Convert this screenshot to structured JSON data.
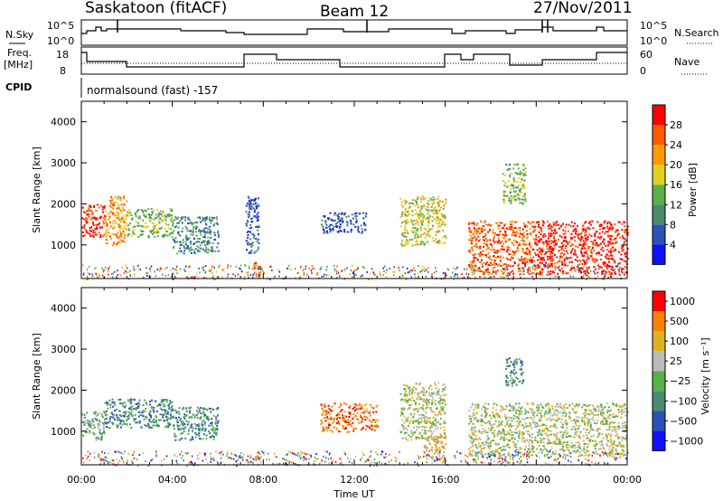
{
  "header": {
    "station": "Saskatoon (fitACF)",
    "beam": "Beam 12",
    "date": "27/Nov/2011"
  },
  "top_panels": {
    "nsky_label": "N.Sky",
    "nsky_ticks": [
      "10^5",
      "10^0"
    ],
    "nsearch_label": "N.Search",
    "nsearch_ticks": [
      "10^5",
      "10^0"
    ],
    "freq_label_1": "Freq.",
    "freq_label_2": "[MHz]",
    "freq_ticks": [
      "18",
      "8"
    ],
    "nave_label": "Nave",
    "nave_ticks": [
      "60",
      "0"
    ],
    "cpid_label": "CPID",
    "cpid_text": "normalsound (fast) -157"
  },
  "chart_data": [
    {
      "type": "heatmap",
      "name": "power",
      "ylabel": "Slant Range [km]",
      "xlabel": "",
      "ylim": [
        180,
        4500
      ],
      "yticks": [
        1000,
        2000,
        3000,
        4000
      ],
      "colorbar_label": "Power [dB]",
      "colorbar_ticks": [
        4,
        8,
        12,
        16,
        20,
        24,
        28
      ],
      "colors": [
        "#1010ff",
        "#2c52b8",
        "#4a8a70",
        "#58b048",
        "#e0d020",
        "#ff9a00",
        "#ff5a00",
        "#ff0000"
      ],
      "regions": [
        {
          "x": [
            0.0,
            1.0
          ],
          "y": [
            1200,
            2000
          ],
          "level": 7
        },
        {
          "x": [
            1.0,
            2.0
          ],
          "y": [
            1000,
            2200
          ],
          "level": 5
        },
        {
          "x": [
            2.0,
            4.0
          ],
          "y": [
            1200,
            1900
          ],
          "level": 3
        },
        {
          "x": [
            4.0,
            6.0
          ],
          "y": [
            800,
            1700
          ],
          "level": 2
        },
        {
          "x": [
            7.2,
            7.8
          ],
          "y": [
            800,
            2200
          ],
          "level": 1
        },
        {
          "x": [
            7.5,
            8.0
          ],
          "y": [
            250,
            600
          ],
          "level": 6
        },
        {
          "x": [
            10.5,
            12.5
          ],
          "y": [
            1300,
            1800
          ],
          "level": 1
        },
        {
          "x": [
            14.0,
            16.0
          ],
          "y": [
            1000,
            2200
          ],
          "level": 4
        },
        {
          "x": [
            17.0,
            20.0
          ],
          "y": [
            300,
            1600
          ],
          "level": 6
        },
        {
          "x": [
            18.5,
            19.5
          ],
          "y": [
            2000,
            3000
          ],
          "level": 3
        },
        {
          "x": [
            20.0,
            24.0
          ],
          "y": [
            300,
            1600
          ],
          "level": 7
        }
      ]
    },
    {
      "type": "heatmap",
      "name": "velocity",
      "ylabel": "Slant Range [km]",
      "xlabel": "Time UT",
      "ylim": [
        180,
        4500
      ],
      "yticks": [
        1000,
        2000,
        3000,
        4000
      ],
      "xticks": [
        "00:00",
        "04:00",
        "08:00",
        "12:00",
        "16:00",
        "20:00",
        "00:00"
      ],
      "xlim_hours": [
        0,
        24
      ],
      "colorbar_label": "Velocity [m s⁻¹]",
      "colorbar_ticks": [
        "1000",
        "500",
        "100",
        "25",
        "−25",
        "−100",
        "−500",
        "−1000"
      ],
      "colors": [
        "#1010ff",
        "#2c52b8",
        "#4a8a70",
        "#58b048",
        "#bbbbbb",
        "#e0b020",
        "#ff8000",
        "#ff0000"
      ],
      "regions": [
        {
          "x": [
            0.0,
            1.0
          ],
          "y": [
            800,
            1500
          ],
          "level": 3
        },
        {
          "x": [
            1.0,
            4.0
          ],
          "y": [
            1100,
            1800
          ],
          "level": 2
        },
        {
          "x": [
            4.0,
            6.0
          ],
          "y": [
            800,
            1600
          ],
          "level": 2
        },
        {
          "x": [
            7.5,
            8.0
          ],
          "y": [
            250,
            500
          ],
          "level": 5
        },
        {
          "x": [
            10.5,
            13.0
          ],
          "y": [
            1000,
            1700
          ],
          "level": 6
        },
        {
          "x": [
            14.0,
            16.0
          ],
          "y": [
            800,
            2200
          ],
          "level": 4
        },
        {
          "x": [
            15.0,
            16.0
          ],
          "y": [
            300,
            900
          ],
          "level": 5
        },
        {
          "x": [
            17.0,
            24.0
          ],
          "y": [
            400,
            1700
          ],
          "level": 4
        },
        {
          "x": [
            18.6,
            19.4
          ],
          "y": [
            2100,
            2800
          ],
          "level": 2
        }
      ]
    }
  ]
}
